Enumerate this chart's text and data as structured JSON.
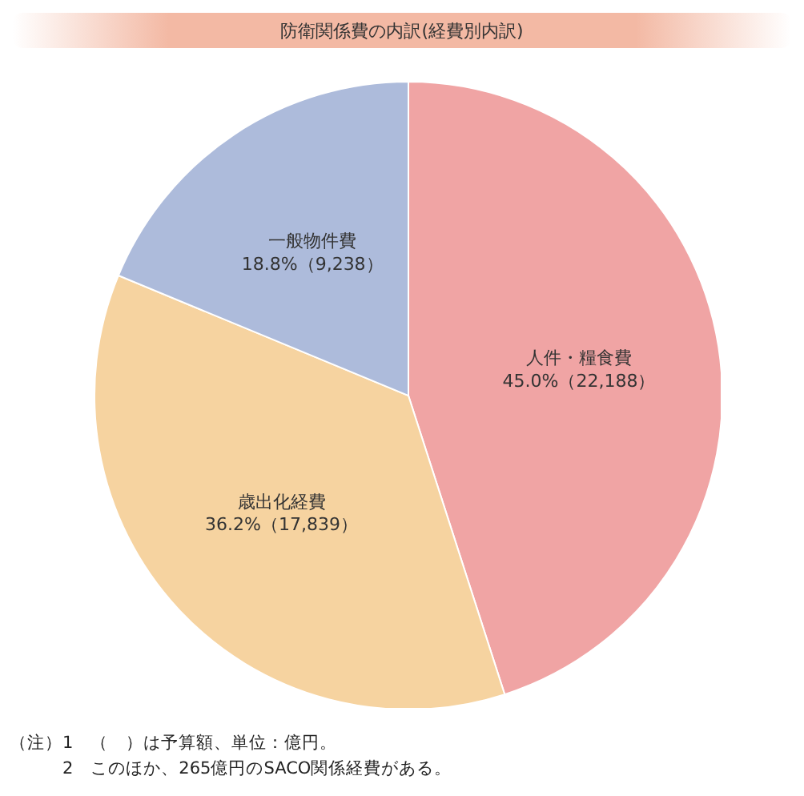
{
  "chart_data": {
    "type": "pie",
    "title": "防衛関係費の内訳(経費別内訳)",
    "categories": [
      "人件・糧食費",
      "歳出化経費",
      "一般物件費"
    ],
    "values": [
      22188,
      17839,
      9238
    ],
    "value_labels": [
      "45.0%（22,188）",
      "36.2%（17,839）",
      "18.8%（9,238）"
    ],
    "colors": [
      "#f0a4a4",
      "#f6d3a0",
      "#adbbdb"
    ],
    "annotations": [
      "（注）1　（　）は予算額、単位：億円。",
      "　　　2　このほか、265億円のSACO関係経費がある。"
    ]
  }
}
